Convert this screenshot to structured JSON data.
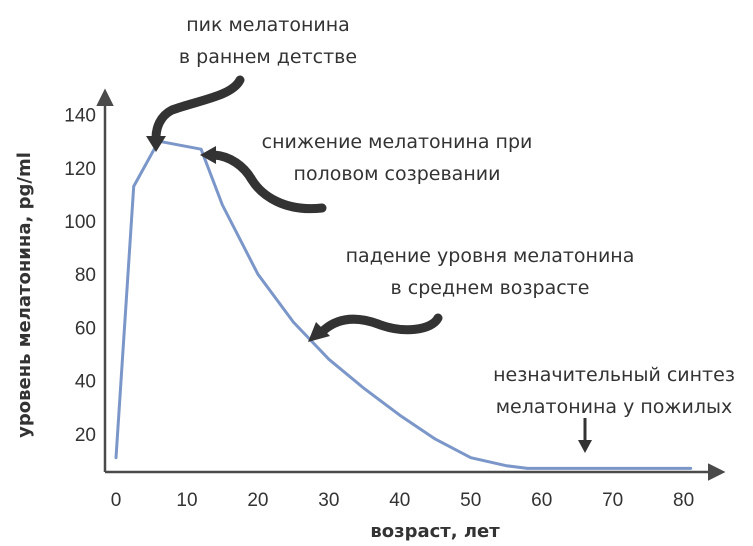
{
  "chart_data": {
    "type": "line",
    "xlabel": "возраст, лет",
    "ylabel": "уровень мелатонина, pg/ml",
    "xlim": [
      0,
      83
    ],
    "ylim": [
      0,
      150
    ],
    "xticks": [
      0,
      10,
      20,
      30,
      40,
      50,
      60,
      70,
      80
    ],
    "yticks": [
      20,
      40,
      60,
      80,
      100,
      120,
      140
    ],
    "grid": false,
    "series": [
      {
        "color": "#7b96c8",
        "x": [
          0,
          2.5,
          6,
          12,
          15,
          20,
          25,
          30,
          35,
          40,
          45,
          50,
          55,
          58,
          65,
          70,
          75,
          81
        ],
        "y": [
          11,
          113,
          130,
          127,
          106,
          80,
          62,
          48,
          37,
          27,
          18,
          11,
          8,
          7,
          7,
          7,
          7,
          7
        ]
      }
    ],
    "annotations": [
      {
        "line1": "пик мелатонина",
        "line2": "в раннем детстве"
      },
      {
        "line1": "снижение мелатонина при",
        "line2": "половом созревании"
      },
      {
        "line1": "падение уровня мелатонина",
        "line2": "в среднем возрасте"
      },
      {
        "line1": "незначительный синтез",
        "line2": "мелатонина у пожилых"
      }
    ]
  }
}
